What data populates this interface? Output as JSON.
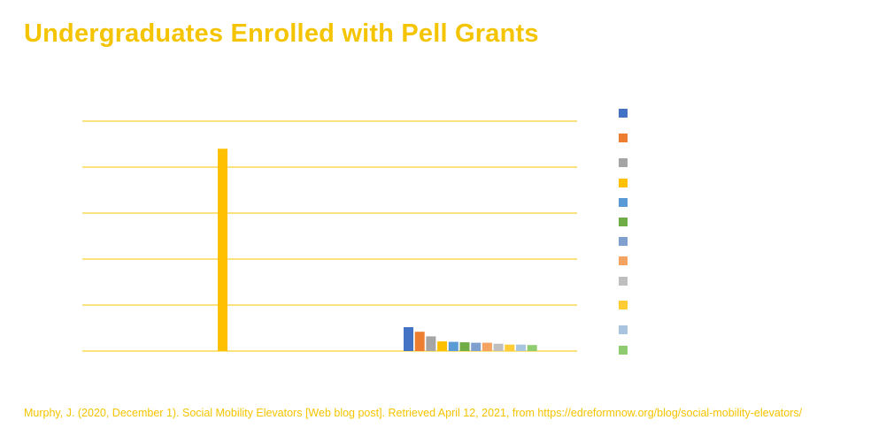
{
  "page": {
    "title": "Undergraduates Enrolled with Pell Grants",
    "citation": "Murphy, J. (2020, December 1). Social Mobility Elevators [Web blog post]. Retrieved April 12, 2021, from https://edreformnow.org/blog/social-mobility-elevators/"
  },
  "colors": {
    "accent": "#f5c400",
    "gridline": "#f5c400"
  },
  "chart_data": {
    "type": "bar",
    "title": "Undergraduates Enrolled with Pell Grants",
    "xlabel": "",
    "ylabel": "",
    "ylim": [
      0,
      5
    ],
    "grid": true,
    "gridlines": 5,
    "legend_position": "right",
    "groups": [
      {
        "bars": [
          {
            "value": 4.4,
            "color": "#ffc000"
          }
        ]
      },
      {
        "bars": [
          {
            "value": 0.52,
            "color": "#4472c4"
          },
          {
            "value": 0.42,
            "color": "#ed7d31"
          },
          {
            "value": 0.32,
            "color": "#a5a5a5"
          },
          {
            "value": 0.21,
            "color": "#ffc000"
          },
          {
            "value": 0.2,
            "color": "#5b9bd5"
          },
          {
            "value": 0.19,
            "color": "#70ad47"
          },
          {
            "value": 0.18,
            "color": "#7f9fcf"
          },
          {
            "value": 0.18,
            "color": "#f4a460"
          },
          {
            "value": 0.16,
            "color": "#bfbfbf"
          },
          {
            "value": 0.14,
            "color": "#ffcc33"
          },
          {
            "value": 0.14,
            "color": "#a9c4de"
          },
          {
            "value": 0.13,
            "color": "#8fcc6f"
          }
        ]
      }
    ],
    "legend": [
      {
        "color": "#4472c4"
      },
      {
        "color": "#ed7d31"
      },
      {
        "color": "#a5a5a5"
      },
      {
        "color": "#ffc000"
      },
      {
        "color": "#5b9bd5"
      },
      {
        "color": "#70ad47"
      },
      {
        "color": "#7f9fcf"
      },
      {
        "color": "#f4a460"
      },
      {
        "color": "#bfbfbf"
      },
      {
        "color": "#ffcc33"
      },
      {
        "color": "#a9c4de"
      },
      {
        "color": "#8fcc6f"
      }
    ]
  }
}
